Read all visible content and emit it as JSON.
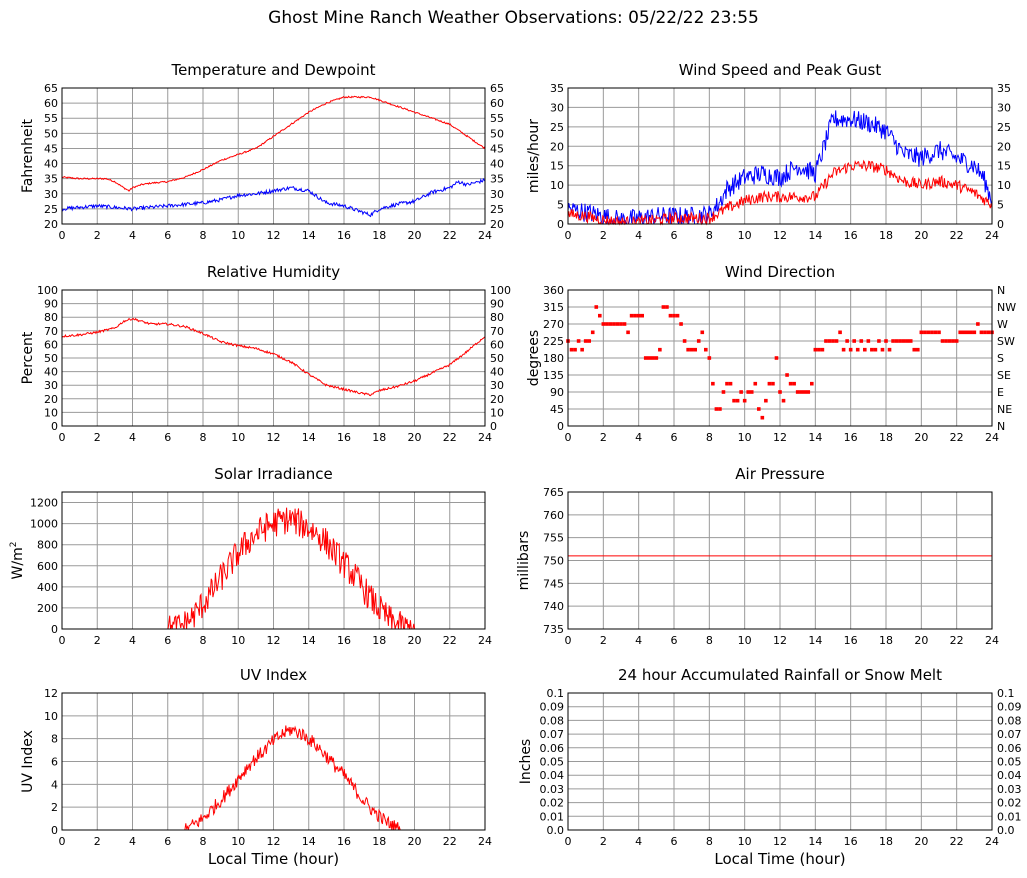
{
  "page": {
    "title": "Ghost Mine Ranch Weather Observations: 05/22/22 23:55"
  },
  "x_axis": {
    "label": "Local Time (hour)",
    "ticks": [
      0,
      2,
      4,
      6,
      8,
      10,
      12,
      14,
      16,
      18,
      20,
      22,
      24
    ]
  },
  "colors": {
    "red": "#ff0000",
    "blue": "#0000ff",
    "grid": "#9a9a9a",
    "frame": "#000000"
  },
  "chart_data": [
    {
      "id": "temp",
      "type": "line",
      "title": "Temperature and Dewpoint",
      "ylabel": "Fahrenheit",
      "ylim": [
        20,
        65
      ],
      "yticks": [
        20,
        25,
        30,
        35,
        40,
        45,
        50,
        55,
        60,
        65
      ],
      "right_labels": [
        "20",
        "25",
        "30",
        "35",
        "40",
        "45",
        "50",
        "55",
        "60",
        "65"
      ],
      "xlim": [
        0,
        24
      ],
      "xlabel": "",
      "series": [
        {
          "color": "#ff0000",
          "noise": 0.25,
          "x": [
            0,
            1,
            2,
            2.5,
            3,
            3.5,
            3.8,
            4,
            4.5,
            5,
            6,
            7,
            8,
            9,
            10,
            11,
            12,
            13,
            14,
            15,
            16,
            17,
            17.5,
            18,
            19,
            20,
            21,
            22,
            22.5,
            23,
            24
          ],
          "y": [
            35.5,
            35,
            35,
            35,
            34,
            32,
            31,
            32,
            33,
            33.5,
            34,
            35.5,
            38,
            41,
            43,
            45,
            49,
            53,
            57,
            60,
            62,
            62,
            62,
            61,
            59,
            57,
            55,
            53,
            51,
            49,
            45
          ]
        },
        {
          "color": "#0000ff",
          "noise": 0.6,
          "x": [
            0,
            1,
            2,
            3,
            4,
            5,
            6,
            7,
            8,
            9,
            10,
            11,
            12,
            13,
            14,
            15,
            16,
            17,
            17.5,
            18,
            19,
            20,
            21,
            22,
            22.5,
            23,
            24
          ],
          "y": [
            25,
            25.5,
            26,
            25.5,
            25,
            25.5,
            26,
            26.5,
            27,
            28,
            29.5,
            30,
            31,
            32,
            31,
            27,
            26,
            24,
            23,
            25,
            26.5,
            27.5,
            30.5,
            32,
            34,
            33,
            34.5
          ]
        }
      ]
    },
    {
      "id": "wind",
      "type": "line",
      "title": "Wind Speed and Peak Gust",
      "ylabel": "miles/hour",
      "ylim": [
        0,
        35
      ],
      "yticks": [
        0,
        5,
        10,
        15,
        20,
        25,
        30,
        35
      ],
      "right_labels": [
        "0",
        "5",
        "10",
        "15",
        "20",
        "25",
        "30",
        "35"
      ],
      "xlim": [
        0,
        24
      ],
      "xlabel": "",
      "series": [
        {
          "color": "#0000ff",
          "noise": 2.5,
          "x": [
            0,
            1,
            2,
            3,
            4,
            5,
            6,
            7,
            8,
            8.5,
            9,
            10,
            11,
            12,
            13,
            14,
            14.5,
            15,
            16,
            17,
            18,
            19,
            20,
            21,
            22,
            23,
            23.5,
            24
          ],
          "y": [
            4,
            3,
            2,
            1,
            1.5,
            2,
            2,
            2,
            2.5,
            5,
            9,
            12,
            13,
            12,
            15,
            13,
            20,
            27,
            27,
            26,
            24,
            18,
            17,
            19,
            17,
            15,
            12,
            6
          ]
        },
        {
          "color": "#ff0000",
          "noise": 1.5,
          "x": [
            0,
            1,
            2,
            3,
            4,
            5,
            6,
            7,
            8,
            9,
            10,
            11,
            12,
            13,
            14,
            14.5,
            15,
            16,
            17,
            18,
            19,
            20,
            21,
            22,
            23,
            24
          ],
          "y": [
            2.5,
            2,
            1,
            0.5,
            0.5,
            1,
            1.5,
            1.5,
            1.5,
            4,
            6,
            7,
            7,
            7,
            7,
            10,
            13,
            15,
            15,
            14,
            11,
            10,
            11,
            10,
            8,
            5
          ]
        }
      ]
    },
    {
      "id": "rh",
      "type": "line",
      "title": "Relative Humidity",
      "ylabel": "Percent",
      "ylim": [
        0,
        100
      ],
      "yticks": [
        0,
        10,
        20,
        30,
        40,
        50,
        60,
        70,
        80,
        90,
        100
      ],
      "right_labels": [
        "0",
        "10",
        "20",
        "30",
        "40",
        "50",
        "60",
        "70",
        "80",
        "90",
        "100"
      ],
      "xlim": [
        0,
        24
      ],
      "xlabel": "",
      "series": [
        {
          "color": "#ff0000",
          "noise": 0.8,
          "x": [
            0,
            1,
            2,
            3,
            3.5,
            4,
            5,
            6,
            7,
            8,
            9,
            10,
            11,
            12,
            13,
            14,
            15,
            16,
            17,
            17.5,
            18,
            19,
            20,
            21,
            22,
            22.5,
            23,
            24
          ],
          "y": [
            66,
            67,
            69,
            72,
            77,
            79,
            75,
            75,
            73,
            68,
            62,
            59,
            57,
            53,
            47,
            38,
            30,
            27,
            24,
            23,
            26,
            29,
            33,
            39,
            45,
            50,
            55,
            66
          ]
        }
      ]
    },
    {
      "id": "wdir",
      "type": "scatter",
      "title": "Wind Direction",
      "ylabel": "degrees",
      "ylim": [
        0,
        360
      ],
      "yticks": [
        0,
        45,
        90,
        135,
        180,
        225,
        270,
        315,
        360
      ],
      "right_labels": [
        "N",
        "NE",
        "E",
        "SE",
        "S",
        "SW",
        "W",
        "NW",
        "N"
      ],
      "xlim": [
        0,
        24
      ],
      "xlabel": "",
      "series": [
        {
          "color": "#ff0000",
          "x": [
            0,
            0.2,
            0.4,
            0.6,
            0.8,
            1,
            1.2,
            1.4,
            1.6,
            1.8,
            2,
            2.2,
            2.4,
            2.6,
            2.8,
            3,
            3.2,
            3.4,
            3.6,
            3.8,
            4,
            4.2,
            4.4,
            4.6,
            4.8,
            5,
            5.2,
            5.4,
            5.6,
            5.8,
            6,
            6.2,
            6.4,
            6.6,
            6.8,
            7,
            7.2,
            7.4,
            7.6,
            7.8,
            8,
            8.2,
            8.4,
            8.6,
            8.8,
            9,
            9.2,
            9.4,
            9.6,
            9.8,
            10,
            10.2,
            10.4,
            10.6,
            10.8,
            11,
            11.2,
            11.4,
            11.6,
            11.8,
            12,
            12.2,
            12.4,
            12.6,
            12.8,
            13,
            13.2,
            13.4,
            13.6,
            13.8,
            14,
            14.2,
            14.4,
            14.6,
            14.8,
            15,
            15.2,
            15.4,
            15.6,
            15.8,
            16,
            16.2,
            16.4,
            16.6,
            16.8,
            17,
            17.2,
            17.4,
            17.6,
            17.8,
            18,
            18.2,
            18.4,
            18.6,
            18.8,
            19,
            19.2,
            19.4,
            19.6,
            19.8,
            20,
            20.2,
            20.4,
            20.6,
            20.8,
            21,
            21.2,
            21.4,
            21.6,
            21.8,
            22,
            22.2,
            22.4,
            22.6,
            22.8,
            23,
            23.2,
            23.4,
            23.6,
            23.8,
            24
          ],
          "y": [
            225,
            202,
            202,
            225,
            202,
            225,
            225,
            248,
            315,
            292,
            270,
            270,
            270,
            270,
            270,
            270,
            270,
            248,
            292,
            292,
            292,
            292,
            180,
            180,
            180,
            180,
            202,
            315,
            315,
            292,
            292,
            292,
            270,
            225,
            202,
            202,
            202,
            225,
            248,
            202,
            180,
            112,
            45,
            45,
            90,
            112,
            112,
            67,
            67,
            90,
            67,
            90,
            90,
            112,
            45,
            22,
            67,
            112,
            112,
            180,
            90,
            67,
            135,
            112,
            112,
            90,
            90,
            90,
            90,
            112,
            202,
            202,
            202,
            225,
            225,
            225,
            225,
            248,
            202,
            225,
            202,
            225,
            202,
            225,
            202,
            225,
            202,
            202,
            225,
            202,
            225,
            202,
            225,
            225,
            225,
            225,
            225,
            225,
            202,
            202,
            248,
            248,
            248,
            248,
            248,
            248,
            225,
            225,
            225,
            225,
            225,
            248,
            248,
            248,
            248,
            248,
            270,
            248,
            248,
            248,
            248
          ]
        }
      ]
    },
    {
      "id": "solar",
      "type": "line",
      "title": "Solar Irradiance",
      "ylabel": "W/m",
      "ylabel_sup": "2",
      "ylim": [
        0,
        1300
      ],
      "yticks": [
        0,
        200,
        400,
        600,
        800,
        1000,
        1200
      ],
      "right_labels": [],
      "xlim": [
        0,
        24
      ],
      "xlabel": "",
      "series": [
        {
          "color": "#ff0000",
          "noise": 140,
          "x": [
            0,
            6,
            6.5,
            7,
            7.5,
            8,
            8.5,
            9,
            9.5,
            10,
            10.5,
            11,
            11.5,
            12,
            12.5,
            13,
            13.5,
            14,
            14.5,
            15,
            15.5,
            16,
            16.5,
            17,
            17.5,
            18,
            18.5,
            19,
            19.5,
            20,
            24
          ],
          "y": [
            0,
            0,
            10,
            50,
            130,
            240,
            350,
            480,
            600,
            720,
            820,
            900,
            960,
            1000,
            1030,
            1040,
            1000,
            960,
            900,
            820,
            720,
            620,
            520,
            410,
            290,
            190,
            100,
            40,
            10,
            0,
            0
          ]
        }
      ]
    },
    {
      "id": "pressure",
      "type": "line",
      "title": "Air Pressure",
      "ylabel": "millibars",
      "ylim": [
        735,
        765
      ],
      "yticks": [
        735,
        740,
        745,
        750,
        755,
        760,
        765
      ],
      "right_labels": [],
      "xlim": [
        0,
        24
      ],
      "xlabel": "",
      "series": [
        {
          "color": "#ff0000",
          "noise": 0,
          "x": [
            0,
            24
          ],
          "y": [
            751,
            751
          ]
        }
      ]
    },
    {
      "id": "uv",
      "type": "line",
      "title": "UV Index",
      "ylabel": "UV Index",
      "ylim": [
        0,
        12
      ],
      "yticks": [
        0,
        2,
        4,
        6,
        8,
        10,
        12
      ],
      "right_labels": [],
      "xlim": [
        0,
        24
      ],
      "xlabel": "Local Time (hour)",
      "series": [
        {
          "color": "#ff0000",
          "noise": 0.6,
          "x": [
            0,
            7,
            7.5,
            8,
            8.5,
            9,
            9.5,
            10,
            10.5,
            11,
            11.5,
            12,
            12.5,
            13,
            13.5,
            14,
            14.5,
            15,
            15.5,
            16,
            16.5,
            17,
            17.5,
            18,
            18.5,
            19,
            19.2,
            24
          ],
          "y": [
            0,
            0,
            0.5,
            1,
            1.8,
            2.6,
            3.5,
            4.5,
            5.5,
            6.3,
            7,
            7.8,
            8.4,
            8.8,
            8.5,
            8,
            7.3,
            6.5,
            5.6,
            4.8,
            3.8,
            2.8,
            1.9,
            1.2,
            0.6,
            0.2,
            0,
            0
          ]
        }
      ]
    },
    {
      "id": "rain",
      "type": "line",
      "title": "24 hour Accumulated Rainfall or Snow Melt",
      "ylabel": "Inches",
      "ylim": [
        0,
        0.1
      ],
      "yticks": [
        0,
        0.01,
        0.02,
        0.03,
        0.04,
        0.05,
        0.06,
        0.07,
        0.08,
        0.09,
        0.1
      ],
      "ytick_labels": [
        "0.0",
        "0.01",
        "0.02",
        "0.03",
        "0.04",
        "0.05",
        "0.06",
        "0.07",
        "0.08",
        "0.09",
        "0.1"
      ],
      "right_labels": [
        "0.0",
        "0.01",
        "0.02",
        "0.03",
        "0.04",
        "0.05",
        "0.06",
        "0.07",
        "0.08",
        "0.09",
        "0.1"
      ],
      "xlim": [
        0,
        24
      ],
      "xlabel": "Local Time (hour)",
      "series": [
        {
          "color": "#ff0000",
          "noise": 0,
          "x": [
            0,
            24
          ],
          "y": [
            0,
            0
          ]
        }
      ]
    }
  ]
}
